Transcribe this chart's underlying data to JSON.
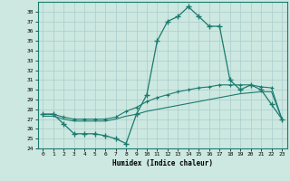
{
  "xlabel": "Humidex (Indice chaleur)",
  "bg_color": "#cce8e0",
  "line_color": "#1a7a6e",
  "grid_color": "#aacccc",
  "ylim": [
    24,
    39
  ],
  "xlim": [
    -0.5,
    23.5
  ],
  "yticks": [
    24,
    25,
    26,
    27,
    28,
    29,
    30,
    31,
    32,
    33,
    34,
    35,
    36,
    37,
    38
  ],
  "xticks": [
    0,
    1,
    2,
    3,
    4,
    5,
    6,
    7,
    8,
    9,
    10,
    11,
    12,
    13,
    14,
    15,
    16,
    17,
    18,
    19,
    20,
    21,
    22,
    23
  ],
  "line1_x": [
    0,
    1,
    2,
    3,
    4,
    5,
    6,
    7,
    8,
    9,
    10,
    11,
    12,
    13,
    14,
    15,
    16,
    17,
    18,
    19,
    20,
    21,
    22,
    23
  ],
  "line1_y": [
    27.5,
    27.5,
    26.5,
    25.5,
    25.5,
    25.5,
    25.3,
    25.0,
    24.5,
    27.5,
    29.5,
    35.0,
    37.0,
    37.5,
    38.5,
    37.5,
    36.5,
    36.5,
    31.0,
    30.0,
    30.5,
    30.0,
    28.5,
    27.0
  ],
  "line2_x": [
    0,
    1,
    2,
    3,
    4,
    5,
    6,
    7,
    8,
    9,
    10,
    11,
    12,
    13,
    14,
    15,
    16,
    17,
    18,
    19,
    20,
    21,
    22,
    23
  ],
  "line2_y": [
    27.5,
    27.5,
    27.2,
    27.0,
    27.0,
    27.0,
    27.0,
    27.2,
    27.8,
    28.2,
    28.8,
    29.2,
    29.5,
    29.8,
    30.0,
    30.2,
    30.3,
    30.5,
    30.5,
    30.5,
    30.5,
    30.3,
    30.2,
    27.0
  ],
  "line3_x": [
    0,
    1,
    2,
    3,
    4,
    5,
    6,
    7,
    8,
    9,
    10,
    11,
    12,
    13,
    14,
    15,
    16,
    17,
    18,
    19,
    20,
    21,
    22,
    23
  ],
  "line3_y": [
    27.3,
    27.3,
    27.0,
    26.8,
    26.8,
    26.8,
    26.8,
    27.0,
    27.3,
    27.5,
    27.8,
    28.0,
    28.2,
    28.4,
    28.6,
    28.8,
    29.0,
    29.2,
    29.4,
    29.6,
    29.7,
    29.8,
    29.8,
    27.0
  ]
}
